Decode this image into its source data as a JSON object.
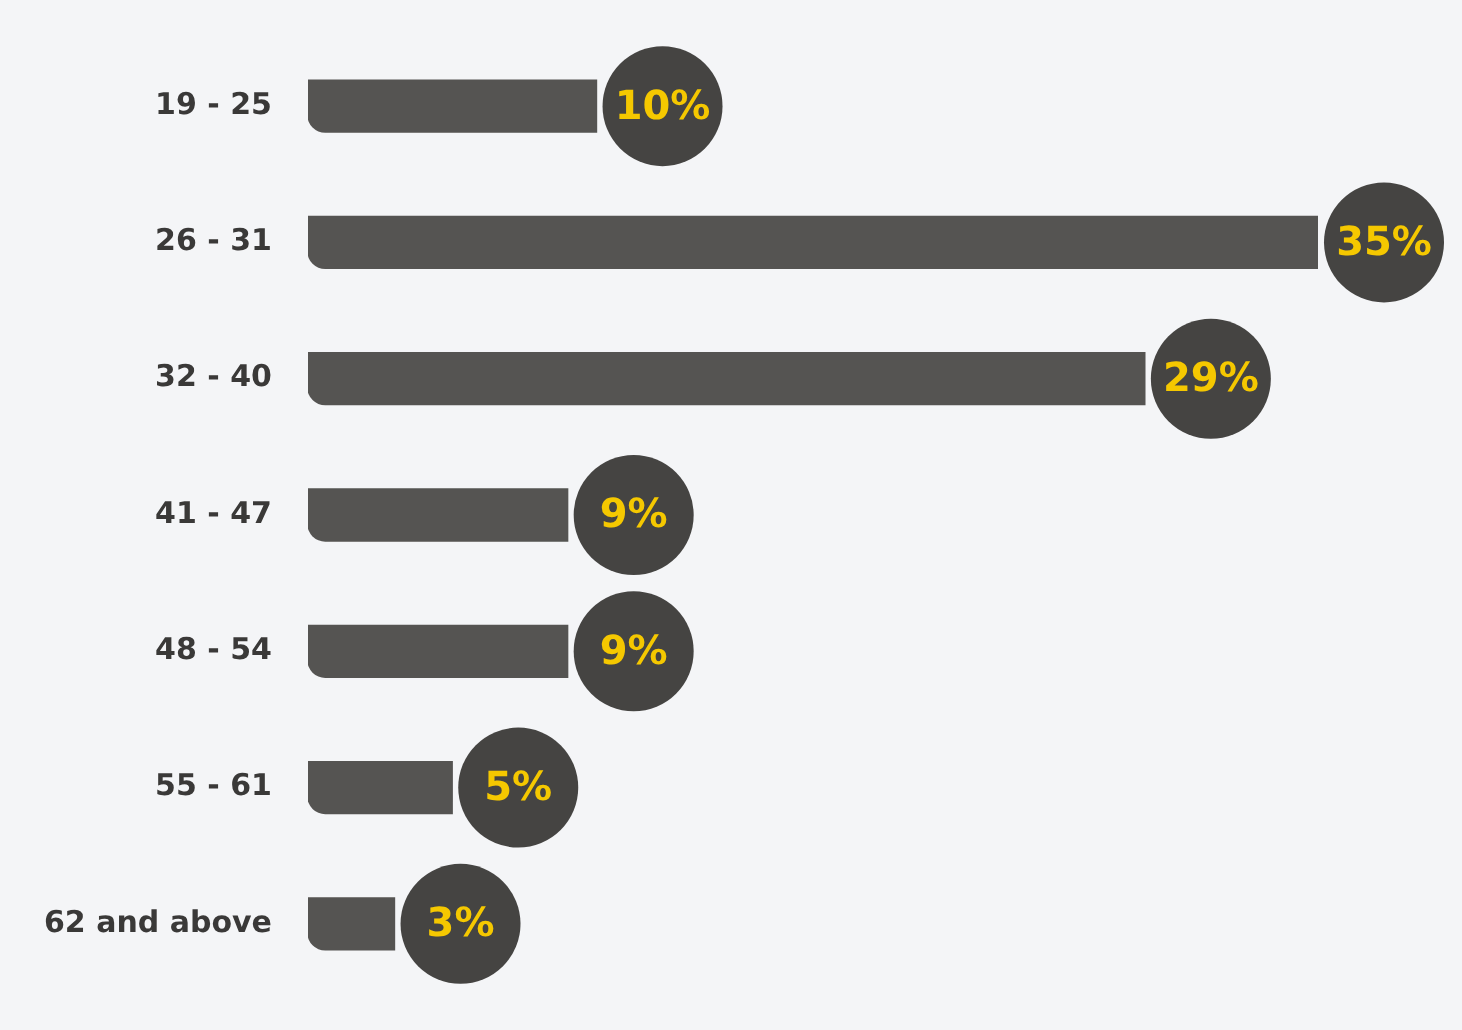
{
  "chart_data": {
    "type": "bar",
    "orientation": "horizontal",
    "categories": [
      "19 - 25",
      "26 - 31",
      "32 - 40",
      "41 - 47",
      "48 - 54",
      "55 - 61",
      "62 and above"
    ],
    "values": [
      10,
      35,
      29,
      9,
      9,
      5,
      3
    ],
    "value_labels": [
      "10%",
      "35%",
      "29%",
      "9%",
      "9%",
      "5%",
      "3%"
    ],
    "color": "#555452",
    "tick_labels": "y"
  }
}
